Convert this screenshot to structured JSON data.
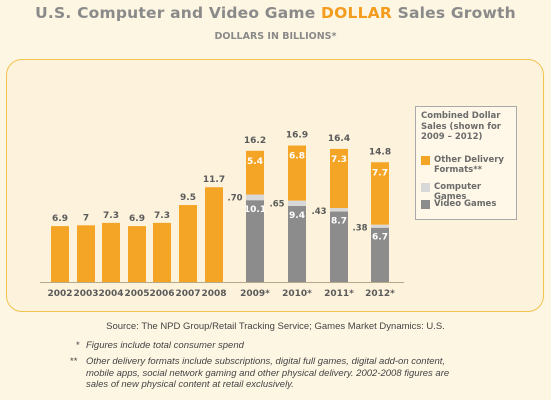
{
  "header": {
    "title_prefix": "U.S. Computer and Video Game ",
    "title_highlight": "DOLLAR",
    "title_suffix": " Sales Growth",
    "subtitle": "DOLLARS IN BILLIONS*"
  },
  "colors": {
    "other": "#f5a526",
    "computer": "#d8d8d8",
    "video": "#8c8c8c",
    "accent": "#f39c1d"
  },
  "legend": {
    "title": "Combined Dollar Sales (shown for 2009 – 2012)",
    "items": [
      {
        "key": "other",
        "label": "Other Delivery Formats**"
      },
      {
        "key": "computer",
        "label": "Computer Games"
      },
      {
        "key": "video",
        "label": "Video Games"
      }
    ]
  },
  "chart_data": {
    "type": "bar",
    "categories": [
      "2002",
      "2003",
      "2004",
      "2005",
      "2006",
      "2007",
      "2008",
      "2009*",
      "2010*",
      "2011*",
      "2012*"
    ],
    "single": {
      "values": [
        6.9,
        7,
        7.3,
        6.9,
        7.3,
        9.5,
        11.7
      ],
      "labels": [
        "6.9",
        "7",
        "7.3",
        "6.9",
        "7.3",
        "9.5",
        "11.7"
      ]
    },
    "stacked": [
      {
        "category": "2009*",
        "total": "16.2",
        "video": 10.1,
        "computer": 0.7,
        "other": 5.4,
        "video_label": "10.1",
        "computer_label": ".70",
        "other_label": "5.4"
      },
      {
        "category": "2010*",
        "total": "16.9",
        "video": 9.4,
        "computer": 0.65,
        "other": 6.8,
        "video_label": "9.4",
        "computer_label": ".65",
        "other_label": "6.8"
      },
      {
        "category": "2011*",
        "total": "16.4",
        "video": 8.7,
        "computer": 0.43,
        "other": 7.3,
        "video_label": "8.7",
        "computer_label": ".43",
        "other_label": "7.3"
      },
      {
        "category": "2012*",
        "total": "14.8",
        "video": 6.7,
        "computer": 0.38,
        "other": 7.7,
        "video_label": "6.7",
        "computer_label": ".38",
        "other_label": "7.7"
      }
    ],
    "ylim": [
      0,
      18
    ]
  },
  "footer": {
    "source": "Source: The NPD Group/Retail Tracking Service; Games Market Dynamics: U.S.",
    "note1_mark": "*",
    "note1": "Figures include total consumer spend",
    "note2_mark": "**",
    "note2_line1": "Other delivery formats include subscriptions, digital full games, digital add-on content,",
    "note2_line2": "mobile apps, social network gaming and other physical delivery. 2002-2008 figures are",
    "note2_line3": "sales of new physical content at retail exclusively."
  }
}
